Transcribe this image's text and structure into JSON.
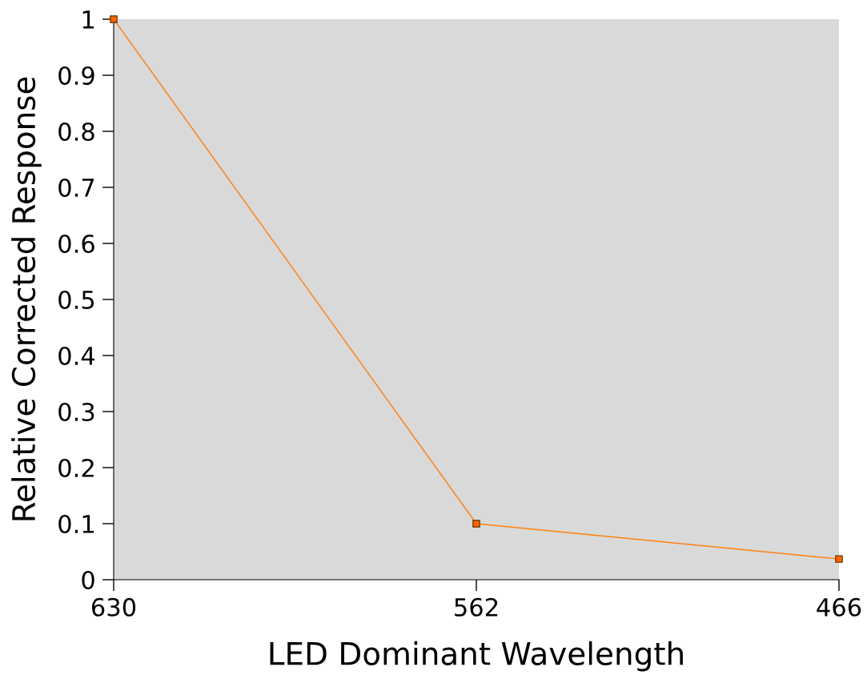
{
  "chart_data": {
    "type": "line",
    "xlabel": "LED Dominant Wavelength",
    "ylabel": "Relative Corrected Response",
    "categories": [
      "630",
      "562",
      "466"
    ],
    "series": [
      {
        "color": "#ff7f0e",
        "values": [
          1,
          0.1,
          0.037
        ]
      }
    ],
    "ylim": [
      0,
      1
    ],
    "yticks": [
      0,
      0.1,
      0.2,
      0.3,
      0.4,
      0.5,
      0.6,
      0.7,
      0.8,
      0.9,
      1
    ],
    "marker": "square",
    "line_style": "solid"
  }
}
